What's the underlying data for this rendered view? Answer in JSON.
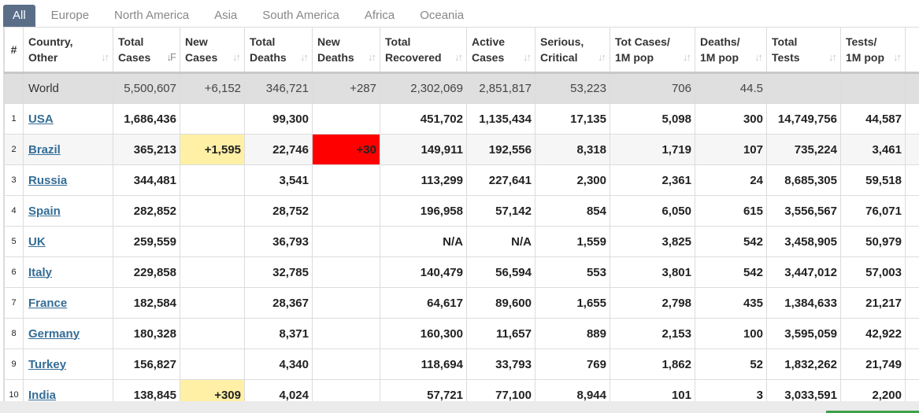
{
  "tabs": [
    "All",
    "Europe",
    "North America",
    "Asia",
    "South America",
    "Africa",
    "Oceania"
  ],
  "headers": {
    "index": "#",
    "country": [
      "Country,",
      "Other"
    ],
    "total_cases": [
      "Total",
      "Cases"
    ],
    "new_cases": [
      "New",
      "Cases"
    ],
    "total_deaths": [
      "Total",
      "Deaths"
    ],
    "new_deaths": [
      "New",
      "Deaths"
    ],
    "total_recovered": [
      "Total",
      "Recovered"
    ],
    "active_cases": [
      "Active",
      "Cases"
    ],
    "serious": [
      "Serious,",
      "Critical"
    ],
    "cases_per_m": [
      "Tot Cases/",
      "1M pop"
    ],
    "deaths_per_m": [
      "Deaths/",
      "1M pop"
    ],
    "total_tests": [
      "Total",
      "Tests"
    ],
    "tests_per_m": [
      "Tests/",
      "1M pop"
    ]
  },
  "sort_icons": {
    "neutral": "↓↑",
    "active": "↓F"
  },
  "world": {
    "country": "World",
    "total_cases": "5,500,607",
    "new_cases": "+6,152",
    "total_deaths": "346,721",
    "new_deaths": "+287",
    "total_recovered": "2,302,069",
    "active_cases": "2,851,817",
    "serious": "53,223",
    "cases_per_m": "706",
    "deaths_per_m": "44.5",
    "total_tests": "",
    "tests_per_m": ""
  },
  "rows": [
    {
      "idx": "1",
      "country": "USA",
      "total_cases": "1,686,436",
      "new_cases": "",
      "total_deaths": "99,300",
      "new_deaths": "",
      "total_recovered": "451,702",
      "active_cases": "1,135,434",
      "serious": "17,135",
      "cases_per_m": "5,098",
      "deaths_per_m": "300",
      "total_tests": "14,749,756",
      "tests_per_m": "44,587"
    },
    {
      "idx": "2",
      "country": "Brazil",
      "total_cases": "365,213",
      "new_cases": "+1,595",
      "total_deaths": "22,746",
      "new_deaths": "+30",
      "total_recovered": "149,911",
      "active_cases": "192,556",
      "serious": "8,318",
      "cases_per_m": "1,719",
      "deaths_per_m": "107",
      "total_tests": "735,224",
      "tests_per_m": "3,461"
    },
    {
      "idx": "3",
      "country": "Russia",
      "total_cases": "344,481",
      "new_cases": "",
      "total_deaths": "3,541",
      "new_deaths": "",
      "total_recovered": "113,299",
      "active_cases": "227,641",
      "serious": "2,300",
      "cases_per_m": "2,361",
      "deaths_per_m": "24",
      "total_tests": "8,685,305",
      "tests_per_m": "59,518"
    },
    {
      "idx": "4",
      "country": "Spain",
      "total_cases": "282,852",
      "new_cases": "",
      "total_deaths": "28,752",
      "new_deaths": "",
      "total_recovered": "196,958",
      "active_cases": "57,142",
      "serious": "854",
      "cases_per_m": "6,050",
      "deaths_per_m": "615",
      "total_tests": "3,556,567",
      "tests_per_m": "76,071"
    },
    {
      "idx": "5",
      "country": "UK",
      "total_cases": "259,559",
      "new_cases": "",
      "total_deaths": "36,793",
      "new_deaths": "",
      "total_recovered": "N/A",
      "active_cases": "N/A",
      "serious": "1,559",
      "cases_per_m": "3,825",
      "deaths_per_m": "542",
      "total_tests": "3,458,905",
      "tests_per_m": "50,979"
    },
    {
      "idx": "6",
      "country": "Italy",
      "total_cases": "229,858",
      "new_cases": "",
      "total_deaths": "32,785",
      "new_deaths": "",
      "total_recovered": "140,479",
      "active_cases": "56,594",
      "serious": "553",
      "cases_per_m": "3,801",
      "deaths_per_m": "542",
      "total_tests": "3,447,012",
      "tests_per_m": "57,003"
    },
    {
      "idx": "7",
      "country": "France",
      "total_cases": "182,584",
      "new_cases": "",
      "total_deaths": "28,367",
      "new_deaths": "",
      "total_recovered": "64,617",
      "active_cases": "89,600",
      "serious": "1,655",
      "cases_per_m": "2,798",
      "deaths_per_m": "435",
      "total_tests": "1,384,633",
      "tests_per_m": "21,217"
    },
    {
      "idx": "8",
      "country": "Germany",
      "total_cases": "180,328",
      "new_cases": "",
      "total_deaths": "8,371",
      "new_deaths": "",
      "total_recovered": "160,300",
      "active_cases": "11,657",
      "serious": "889",
      "cases_per_m": "2,153",
      "deaths_per_m": "100",
      "total_tests": "3,595,059",
      "tests_per_m": "42,922"
    },
    {
      "idx": "9",
      "country": "Turkey",
      "total_cases": "156,827",
      "new_cases": "",
      "total_deaths": "4,340",
      "new_deaths": "",
      "total_recovered": "118,694",
      "active_cases": "33,793",
      "serious": "769",
      "cases_per_m": "1,862",
      "deaths_per_m": "52",
      "total_tests": "1,832,262",
      "tests_per_m": "21,749"
    },
    {
      "idx": "10",
      "country": "India",
      "total_cases": "138,845",
      "new_cases": "+309",
      "total_deaths": "4,024",
      "new_deaths": "",
      "total_recovered": "57,721",
      "active_cases": "77,100",
      "serious": "8,944",
      "cases_per_m": "101",
      "deaths_per_m": "3",
      "total_tests": "3,033,591",
      "tests_per_m": "2,200"
    }
  ],
  "colors": {
    "active_tab": "#5a6e88",
    "new_cases_highlight": "#fff0a6",
    "new_deaths_highlight": "#ff0000",
    "country_link": "#346d96"
  }
}
